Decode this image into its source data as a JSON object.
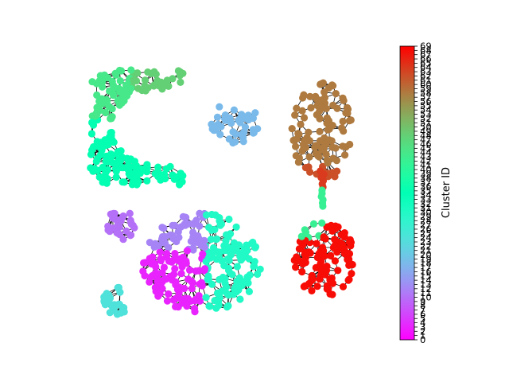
{
  "chart_data": {
    "type": "scatter",
    "title": "",
    "colorbar": {
      "label": "Cluster ID",
      "min": 0,
      "max": 69,
      "colormap": "rainbow",
      "ticks": [
        0,
        1,
        2,
        3,
        4,
        5,
        6,
        7,
        8,
        9,
        10,
        11,
        12,
        13,
        14,
        15,
        16,
        17,
        18,
        19,
        20,
        21,
        22,
        23,
        24,
        25,
        26,
        27,
        28,
        29,
        30,
        31,
        32,
        33,
        34,
        35,
        36,
        37,
        38,
        39,
        40,
        41,
        42,
        43,
        44,
        45,
        46,
        47,
        48,
        49,
        50,
        51,
        52,
        53,
        54,
        55,
        56,
        57,
        58,
        59,
        60,
        61,
        62,
        63,
        64,
        65,
        66,
        67,
        68,
        69
      ]
    },
    "node_color_key": "cluster_id",
    "edge_color": "#000000",
    "groups": [
      {
        "description": "crescent",
        "cluster_ids": [
          48,
          42,
          33
        ]
      },
      {
        "description": "small blob top middle",
        "cluster_ids": [
          18
        ]
      },
      {
        "description": "upper right blob",
        "cluster_ids": [
          58
        ]
      },
      {
        "description": "lower right blob",
        "cluster_ids": [
          68,
          42
        ]
      },
      {
        "description": "large blob lower middle",
        "cluster_ids": [
          3,
          12,
          30
        ]
      },
      {
        "description": "small blob left",
        "cluster_ids": [
          10
        ]
      },
      {
        "description": "tiny blob bottom left",
        "cluster_ids": [
          24
        ]
      }
    ]
  }
}
